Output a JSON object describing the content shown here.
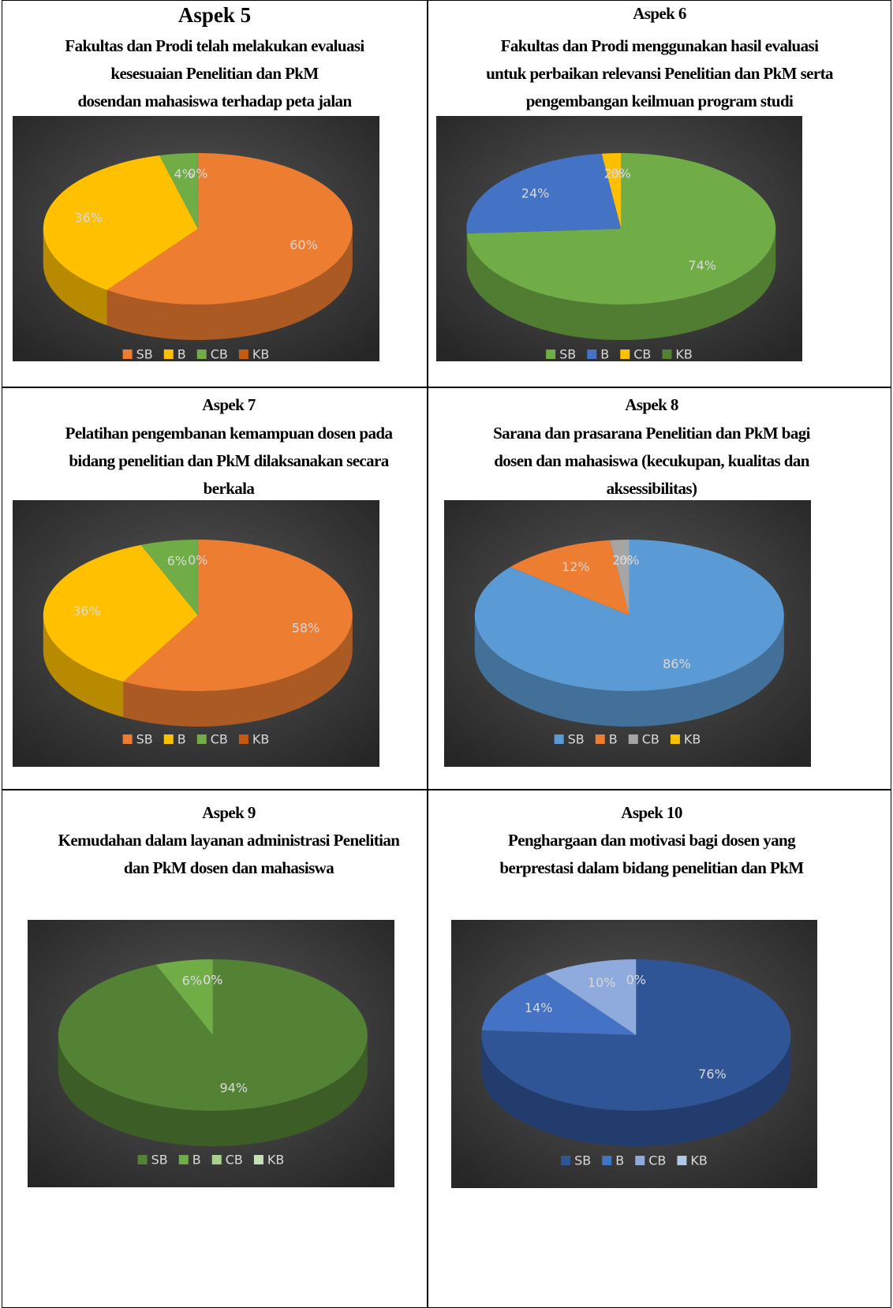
{
  "chart_data": [
    {
      "type": "pie",
      "title": "Aspek 5",
      "subtitle": [
        "Fakultas dan Prodi telah melakukan evaluasi",
        "kesesuaian Penelitian dan PkM",
        "dosendan mahasiswa terhadap peta jalan"
      ],
      "categories": [
        "SB",
        "B",
        "CB",
        "KB"
      ],
      "values": [
        60,
        36,
        4,
        0
      ],
      "value_labels": [
        "60%",
        "36%",
        "4%",
        "0%"
      ],
      "colors": [
        "#ed7d31",
        "#ffc000",
        "#70ad47",
        "#c55a11"
      ]
    },
    {
      "type": "pie",
      "title": "Aspek 6",
      "subtitle": [
        "Fakultas dan Prodi menggunakan hasil evaluasi",
        "untuk perbaikan relevansi Penelitian dan PkM serta",
        "pengembangan  keilmuan program studi"
      ],
      "categories": [
        "SB",
        "B",
        "CB",
        "KB"
      ],
      "values": [
        74,
        24,
        2,
        0
      ],
      "value_labels": [
        "74%",
        "24%",
        "2%",
        "0%"
      ],
      "colors": [
        "#70ad47",
        "#4472c4",
        "#ffc000",
        "#548235"
      ]
    },
    {
      "type": "pie",
      "title": "Aspek 7",
      "subtitle": [
        "Pelatihan pengembanan kemampuan dosen pada",
        "bidang penelitian dan PkM dilaksanakan secara",
        "berkala"
      ],
      "categories": [
        "SB",
        "B",
        "CB",
        "KB"
      ],
      "values": [
        58,
        36,
        6,
        0
      ],
      "value_labels": [
        "58%",
        "36%",
        "6%",
        "0%"
      ],
      "colors": [
        "#ed7d31",
        "#ffc000",
        "#70ad47",
        "#c55a11"
      ]
    },
    {
      "type": "pie",
      "title": "Aspek 8",
      "subtitle": [
        "Sarana dan prasarana Penelitian dan PkM bagi",
        "dosen dan mahasiswa (kecukupan, kualitas dan",
        "aksessibilitas)"
      ],
      "categories": [
        "SB",
        "B",
        "CB",
        "KB"
      ],
      "values": [
        86,
        12,
        2,
        0
      ],
      "value_labels": [
        "86%",
        "12%",
        "2%",
        "0%"
      ],
      "colors": [
        "#5b9bd5",
        "#ed7d31",
        "#a5a5a5",
        "#ffc000"
      ]
    },
    {
      "type": "pie",
      "title": "Aspek 9",
      "subtitle": [
        "Kemudahan dalam layanan administrasi Penelitian",
        "dan PkM dosen dan mahasiswa"
      ],
      "categories": [
        "SB",
        "B",
        "CB",
        "KB"
      ],
      "values": [
        94,
        6,
        0,
        0
      ],
      "value_labels": [
        "94%",
        "6%",
        "0%",
        "0%"
      ],
      "colors": [
        "#548235",
        "#70ad47",
        "#a9d18e",
        "#c5e0b4"
      ]
    },
    {
      "type": "pie",
      "title": "Aspek 10",
      "subtitle": [
        "Penghargaan dan motivasi bagi dosen yang",
        "berprestasi dalam bidang penelitian dan PkM"
      ],
      "categories": [
        "SB",
        "B",
        "CB",
        "KB"
      ],
      "values": [
        76,
        14,
        10,
        0
      ],
      "value_labels": [
        "76%",
        "14%",
        "10%",
        "0%"
      ],
      "colors": [
        "#2f5597",
        "#4472c4",
        "#8faadc",
        "#b4c7e7"
      ]
    }
  ]
}
